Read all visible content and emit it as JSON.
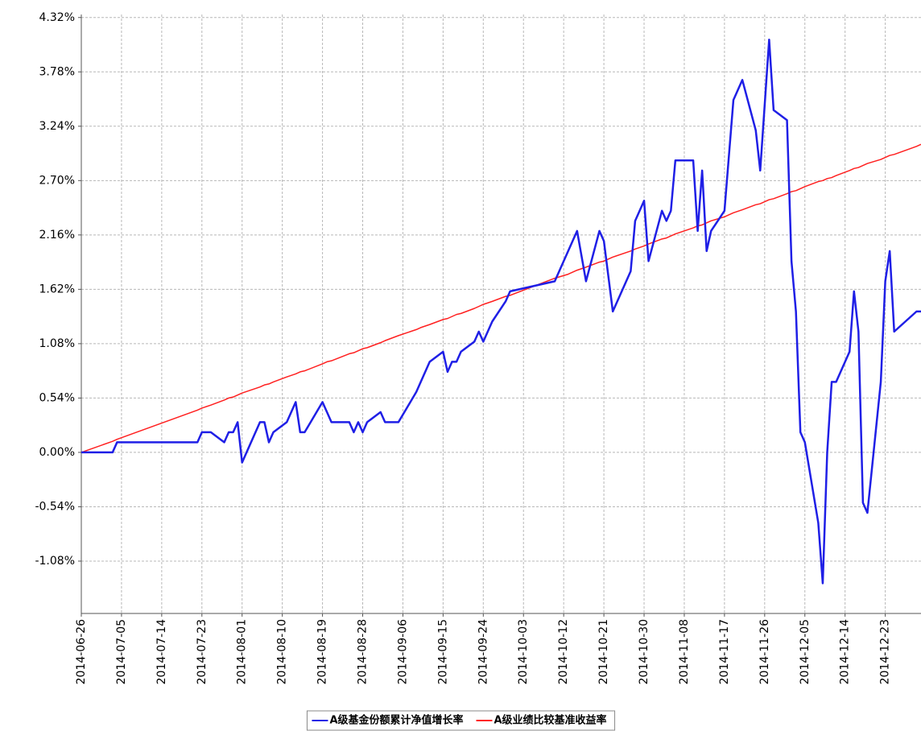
{
  "chart_data": {
    "type": "line",
    "x": [
      "2014-06-26",
      "2014-07-03",
      "2014-07-04",
      "2014-07-22",
      "2014-07-23",
      "2014-07-25",
      "2014-07-28",
      "2014-07-29",
      "2014-07-30",
      "2014-07-31",
      "2014-08-01",
      "2014-08-05",
      "2014-08-06",
      "2014-08-07",
      "2014-08-08",
      "2014-08-11",
      "2014-08-13",
      "2014-08-14",
      "2014-08-15",
      "2014-08-19",
      "2014-08-20",
      "2014-08-21",
      "2014-08-25",
      "2014-08-26",
      "2014-08-27",
      "2014-08-28",
      "2014-08-29",
      "2014-09-01",
      "2014-09-02",
      "2014-09-05",
      "2014-09-09",
      "2014-09-10",
      "2014-09-12",
      "2014-09-15",
      "2014-09-16",
      "2014-09-17",
      "2014-09-18",
      "2014-09-19",
      "2014-09-22",
      "2014-09-23",
      "2014-09-24",
      "2014-09-26",
      "2014-09-29",
      "2014-09-30",
      "2014-10-10",
      "2014-10-13",
      "2014-10-15",
      "2014-10-17",
      "2014-10-20",
      "2014-10-21",
      "2014-10-23",
      "2014-10-27",
      "2014-10-28",
      "2014-10-30",
      "2014-10-31",
      "2014-11-03",
      "2014-11-04",
      "2014-11-05",
      "2014-11-06",
      "2014-11-10",
      "2014-11-11",
      "2014-11-12",
      "2014-11-13",
      "2014-11-14",
      "2014-11-17",
      "2014-11-19",
      "2014-11-21",
      "2014-11-24",
      "2014-11-25",
      "2014-11-27",
      "2014-11-28",
      "2014-12-01",
      "2014-12-02",
      "2014-12-03",
      "2014-12-04",
      "2014-12-05",
      "2014-12-08",
      "2014-12-09",
      "2014-12-10",
      "2014-12-11",
      "2014-12-12",
      "2014-12-15",
      "2014-12-16",
      "2014-12-17",
      "2014-12-18",
      "2014-12-19",
      "2014-12-22",
      "2014-12-23",
      "2014-12-24",
      "2014-12-25",
      "2014-12-30",
      "2014-12-31"
    ],
    "series": [
      {
        "name": "A级基金份额累计净值增长率",
        "color": "#1f1fe6",
        "values": [
          0,
          0,
          0.1,
          0.1,
          0.2,
          0.2,
          0.1,
          0.2,
          0.2,
          0.3,
          -0.1,
          0.3,
          0.3,
          0.1,
          0.2,
          0.3,
          0.5,
          0.2,
          0.2,
          0.5,
          0.4,
          0.3,
          0.3,
          0.2,
          0.3,
          0.2,
          0.3,
          0.4,
          0.3,
          0.3,
          0.6,
          0.7,
          0.9,
          1.0,
          0.8,
          0.9,
          0.9,
          1.0,
          1.1,
          1.2,
          1.1,
          1.3,
          1.5,
          1.6,
          1.7,
          2.0,
          2.2,
          1.7,
          2.2,
          2.1,
          1.4,
          1.8,
          2.3,
          2.5,
          1.9,
          2.4,
          2.3,
          2.4,
          2.9,
          2.9,
          2.2,
          2.8,
          2.0,
          2.2,
          2.4,
          3.5,
          3.7,
          3.2,
          2.8,
          4.1,
          3.4,
          3.3,
          1.9,
          1.4,
          0.2,
          0.1,
          -0.7,
          -1.3,
          0.0,
          0.7,
          0.7,
          1.0,
          1.6,
          1.2,
          -0.5,
          -0.6,
          0.7,
          1.7,
          2.0,
          1.2,
          1.4,
          1.4
        ]
      },
      {
        "name": "A级业绩比较基准收益率",
        "color": "#ff2020",
        "values": [
          0,
          0.11,
          0.13,
          0.42,
          0.44,
          0.47,
          0.52,
          0.54,
          0.55,
          0.57,
          0.59,
          0.65,
          0.67,
          0.68,
          0.7,
          0.75,
          0.78,
          0.8,
          0.81,
          0.88,
          0.9,
          0.91,
          0.98,
          0.99,
          1.01,
          1.03,
          1.04,
          1.09,
          1.11,
          1.16,
          1.22,
          1.24,
          1.27,
          1.32,
          1.33,
          1.35,
          1.37,
          1.38,
          1.43,
          1.45,
          1.47,
          1.5,
          1.55,
          1.56,
          1.73,
          1.77,
          1.81,
          1.84,
          1.89,
          1.9,
          1.94,
          2.0,
          2.02,
          2.05,
          2.07,
          2.12,
          2.13,
          2.15,
          2.17,
          2.23,
          2.25,
          2.26,
          2.28,
          2.3,
          2.34,
          2.38,
          2.41,
          2.46,
          2.47,
          2.51,
          2.52,
          2.57,
          2.59,
          2.6,
          2.62,
          2.64,
          2.69,
          2.7,
          2.72,
          2.73,
          2.75,
          2.8,
          2.82,
          2.83,
          2.85,
          2.87,
          2.91,
          2.93,
          2.95,
          2.96,
          3.04,
          3.06
        ]
      }
    ],
    "xlim": [
      "2014-06-26",
      "2014-12-31"
    ],
    "xticks": [
      "2014-06-26",
      "2014-07-05",
      "2014-07-14",
      "2014-07-23",
      "2014-08-01",
      "2014-08-10",
      "2014-08-19",
      "2014-08-28",
      "2014-09-06",
      "2014-09-15",
      "2014-09-24",
      "2014-10-03",
      "2014-10-12",
      "2014-10-21",
      "2014-10-30",
      "2014-11-08",
      "2014-11-17",
      "2014-11-26",
      "2014-12-05",
      "2014-12-14",
      "2014-12-23"
    ],
    "ylim": [
      -1.6,
      4.35
    ],
    "yticks": [
      {
        "value": 4.32,
        "label": "4.32%"
      },
      {
        "value": 3.78,
        "label": "3.78%"
      },
      {
        "value": 3.24,
        "label": "3.24%"
      },
      {
        "value": 2.7,
        "label": "2.70%"
      },
      {
        "value": 2.16,
        "label": "2.16%"
      },
      {
        "value": 1.62,
        "label": "1.62%"
      },
      {
        "value": 1.08,
        "label": "1.08%"
      },
      {
        "value": 0.54,
        "label": "0.54%"
      },
      {
        "value": 0.0,
        "label": "0.00%"
      },
      {
        "value": -0.54,
        "label": "-0.54%"
      },
      {
        "value": -1.08,
        "label": "-1.08%"
      }
    ],
    "grid": true,
    "legend": "bottom"
  }
}
